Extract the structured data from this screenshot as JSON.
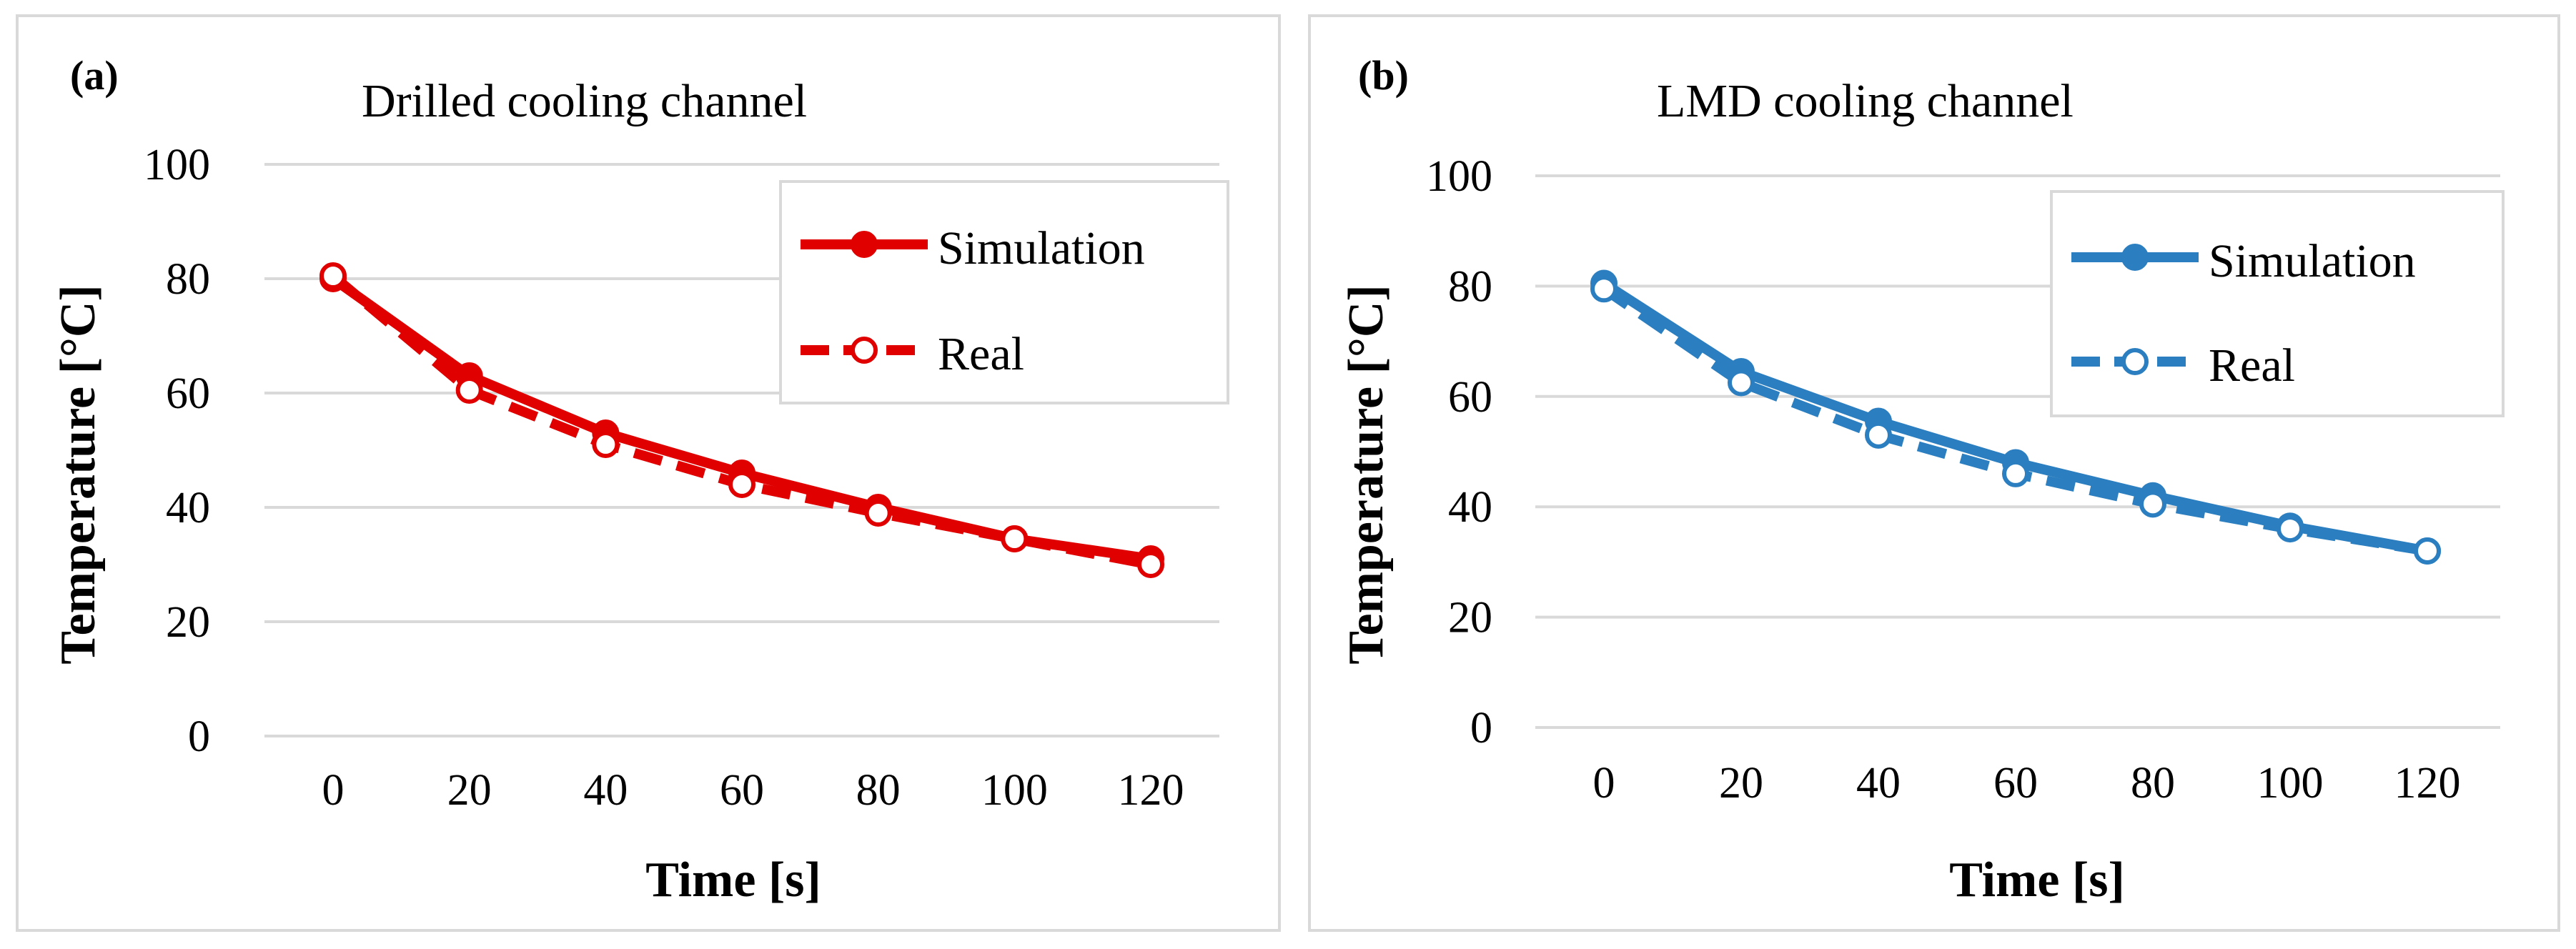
{
  "chart_data": [
    {
      "type": "line",
      "panel_label": "(a)",
      "title": "Drilled cooling channel",
      "xlabel": "Time [s]",
      "ylabel": "Temperature [°C]",
      "x": [
        0,
        20,
        40,
        60,
        80,
        100,
        120
      ],
      "xticks": [
        "0",
        "20",
        "40",
        "60",
        "80",
        "100",
        "120"
      ],
      "yticks": [
        "0",
        "20",
        "40",
        "60",
        "80",
        "100"
      ],
      "ylim": [
        0,
        100
      ],
      "grid": true,
      "legend_position": "top-right",
      "color": "#e00000",
      "series": [
        {
          "name": "Simulation",
          "style": "solid",
          "marker": "filled-circle",
          "values": [
            80,
            63,
            53,
            46,
            40,
            34.5,
            31
          ]
        },
        {
          "name": "Real",
          "style": "dashed",
          "marker": "open-circle",
          "values": [
            80.5,
            60.5,
            51,
            44,
            39,
            34.5,
            30
          ]
        }
      ]
    },
    {
      "type": "line",
      "panel_label": "(b)",
      "title": "LMD cooling channel",
      "xlabel": "Time [s]",
      "ylabel": "Temperature [°C]",
      "x": [
        0,
        20,
        40,
        60,
        80,
        100,
        120
      ],
      "xticks": [
        "0",
        "20",
        "40",
        "60",
        "80",
        "100",
        "120"
      ],
      "yticks": [
        "0",
        "20",
        "40",
        "60",
        "80",
        "100"
      ],
      "ylim": [
        0,
        100
      ],
      "grid": true,
      "legend_position": "top-right",
      "color": "#2b7fc0",
      "series": [
        {
          "name": "Simulation",
          "style": "solid",
          "marker": "filled-circle",
          "values": [
            80.5,
            64.5,
            55.5,
            48,
            42,
            36.5,
            32
          ]
        },
        {
          "name": "Real",
          "style": "dashed",
          "marker": "open-circle",
          "values": [
            79.5,
            62.5,
            53,
            46,
            40.5,
            36,
            32
          ]
        }
      ]
    }
  ]
}
